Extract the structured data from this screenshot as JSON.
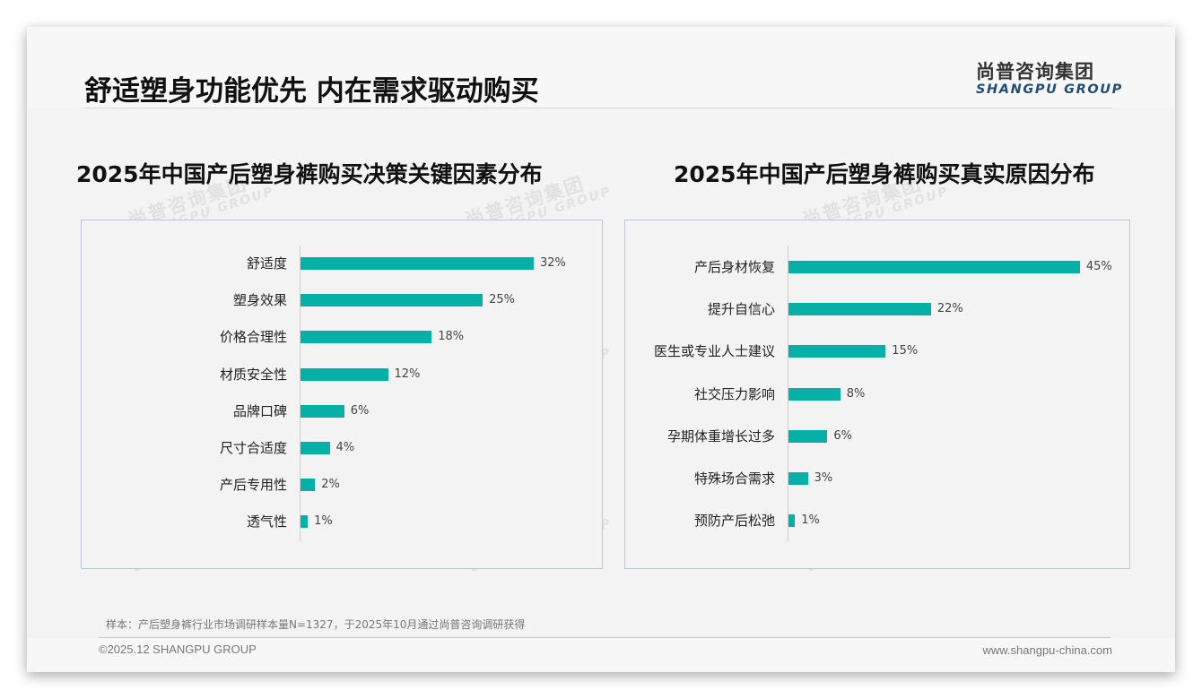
{
  "header": {
    "title": "舒适塑身功能优先 内在需求驱动购买",
    "logo_cn": "尚普咨询集团",
    "logo_en": "SHANGPU GROUP"
  },
  "watermark": {
    "cn": "尚普咨询集团",
    "en": "SHANGPU GROUP"
  },
  "colors": {
    "bar": "#07b0a6",
    "accent_blue": "#1e4e79",
    "panel_border": "#b9c7d6"
  },
  "charts": {
    "left": {
      "title": "2025年中国产后塑身裤购买决策关键因素分布",
      "items": [
        {
          "label": "舒适度",
          "value": 32,
          "display": "32%"
        },
        {
          "label": "塑身效果",
          "value": 25,
          "display": "25%"
        },
        {
          "label": "价格合理性",
          "value": 18,
          "display": "18%"
        },
        {
          "label": "材质安全性",
          "value": 12,
          "display": "12%"
        },
        {
          "label": "品牌口碑",
          "value": 6,
          "display": "6%"
        },
        {
          "label": "尺寸合适度",
          "value": 4,
          "display": "4%"
        },
        {
          "label": "产后专用性",
          "value": 2,
          "display": "2%"
        },
        {
          "label": "透气性",
          "value": 1,
          "display": "1%"
        }
      ]
    },
    "right": {
      "title": "2025年中国产后塑身裤购买真实原因分布",
      "items": [
        {
          "label": "产后身材恢复",
          "value": 45,
          "display": "45%"
        },
        {
          "label": "提升自信心",
          "value": 22,
          "display": "22%"
        },
        {
          "label": "医生或专业人士建议",
          "value": 15,
          "display": "15%"
        },
        {
          "label": "社交压力影响",
          "value": 8,
          "display": "8%"
        },
        {
          "label": "孕期体重增长过多",
          "value": 6,
          "display": "6%"
        },
        {
          "label": "特殊场合需求",
          "value": 3,
          "display": "3%"
        },
        {
          "label": "预防产后松弛",
          "value": 1,
          "display": "1%"
        }
      ]
    }
  },
  "chart_data": [
    {
      "type": "bar",
      "orientation": "horizontal",
      "title": "2025年中国产后塑身裤购买决策关键因素分布",
      "categories": [
        "舒适度",
        "塑身效果",
        "价格合理性",
        "材质安全性",
        "品牌口碑",
        "尺寸合适度",
        "产后专用性",
        "透气性"
      ],
      "values": [
        32,
        25,
        18,
        12,
        6,
        4,
        2,
        1
      ],
      "unit": "%",
      "xlabel": "",
      "ylabel": "",
      "data_labels": true,
      "grid": false,
      "legend": false,
      "color": "#07b0a6"
    },
    {
      "type": "bar",
      "orientation": "horizontal",
      "title": "2025年中国产后塑身裤购买真实原因分布",
      "categories": [
        "产后身材恢复",
        "提升自信心",
        "医生或专业人士建议",
        "社交压力影响",
        "孕期体重增长过多",
        "特殊场合需求",
        "预防产后松弛"
      ],
      "values": [
        45,
        22,
        15,
        8,
        6,
        3,
        1
      ],
      "unit": "%",
      "xlabel": "",
      "ylabel": "",
      "data_labels": true,
      "grid": false,
      "legend": false,
      "color": "#07b0a6"
    }
  ],
  "footer": {
    "note": "样本：产后塑身裤行业市场调研样本量N=1327，于2025年10月通过尚普咨询调研获得",
    "copyright": "©2025.12 SHANGPU GROUP",
    "website": "www.shangpu-china.com"
  }
}
